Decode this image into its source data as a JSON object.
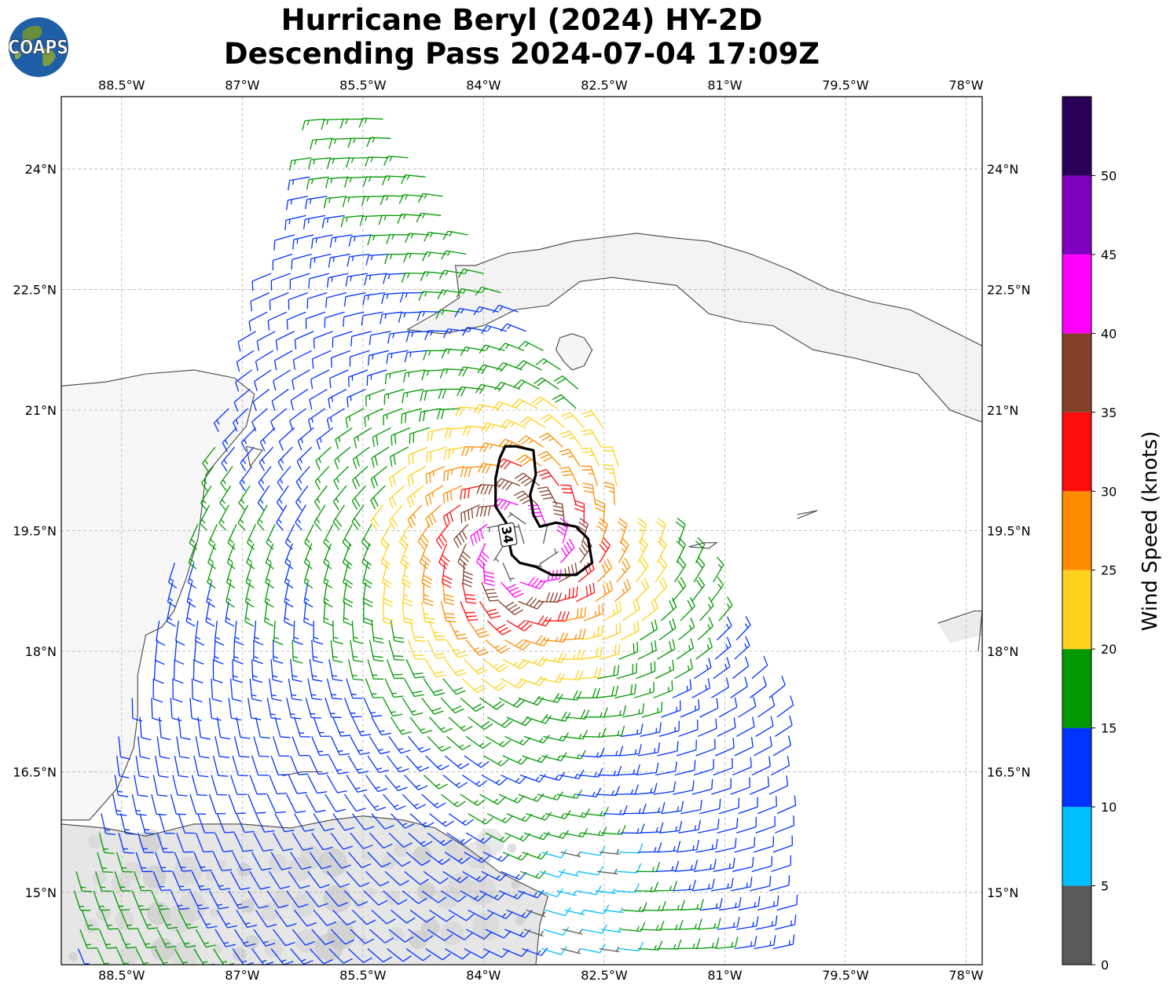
{
  "title": {
    "line1": "Hurricane Beryl (2024) HY-2D",
    "line2": "Descending Pass 2024-07-04 17:09Z"
  },
  "logo": {
    "text": "COAPS"
  },
  "map": {
    "lon_range": [
      -89.25,
      -77.8
    ],
    "lat_range": [
      14.1,
      24.9
    ],
    "lon_ticks": [
      {
        "value": -88.5,
        "label": "88.5°W"
      },
      {
        "value": -87.0,
        "label": "87°W"
      },
      {
        "value": -85.5,
        "label": "85.5°W"
      },
      {
        "value": -84.0,
        "label": "84°W"
      },
      {
        "value": -82.5,
        "label": "82.5°W"
      },
      {
        "value": -81.0,
        "label": "81°W"
      },
      {
        "value": -79.5,
        "label": "79.5°W"
      },
      {
        "value": -78.0,
        "label": "78°W"
      }
    ],
    "lat_ticks": [
      {
        "value": 24.0,
        "label": "24°N"
      },
      {
        "value": 22.5,
        "label": "22.5°N"
      },
      {
        "value": 21.0,
        "label": "21°N"
      },
      {
        "value": 19.5,
        "label": "19.5°N"
      },
      {
        "value": 18.0,
        "label": "18°N"
      },
      {
        "value": 16.5,
        "label": "16.5°N"
      },
      {
        "value": 15.0,
        "label": "15°N"
      }
    ],
    "grid": true,
    "storm_center": {
      "lon": -83.55,
      "lat": 19.3
    },
    "swath_note": "HY-2D descending pass wind barbs",
    "contour_label": "34",
    "contour_34kt": [
      [
        -83.73,
        20.55
      ],
      [
        -83.6,
        20.55
      ],
      [
        -83.38,
        20.5
      ],
      [
        -83.35,
        20.2
      ],
      [
        -83.42,
        19.95
      ],
      [
        -83.38,
        19.7
      ],
      [
        -83.3,
        19.55
      ],
      [
        -83.1,
        19.6
      ],
      [
        -82.85,
        19.55
      ],
      [
        -82.7,
        19.4
      ],
      [
        -82.65,
        19.1
      ],
      [
        -82.85,
        18.95
      ],
      [
        -83.15,
        18.95
      ],
      [
        -83.35,
        19.05
      ],
      [
        -83.55,
        19.1
      ],
      [
        -83.65,
        19.2
      ],
      [
        -83.7,
        19.45
      ],
      [
        -83.72,
        19.6
      ],
      [
        -83.85,
        19.8
      ],
      [
        -83.85,
        20.15
      ],
      [
        -83.8,
        20.4
      ]
    ],
    "coastlines": {
      "cuba": [
        [
          -84.95,
          22.0
        ],
        [
          -84.6,
          22.2
        ],
        [
          -84.3,
          22.4
        ],
        [
          -84.35,
          22.8
        ],
        [
          -84.1,
          22.8
        ],
        [
          -83.7,
          22.95
        ],
        [
          -83.3,
          23.0
        ],
        [
          -82.9,
          23.1
        ],
        [
          -82.5,
          23.15
        ],
        [
          -82.1,
          23.2
        ],
        [
          -81.7,
          23.15
        ],
        [
          -81.2,
          23.1
        ],
        [
          -80.7,
          22.95
        ],
        [
          -80.2,
          22.75
        ],
        [
          -79.7,
          22.5
        ],
        [
          -79.2,
          22.35
        ],
        [
          -78.7,
          22.25
        ],
        [
          -78.2,
          22.0
        ],
        [
          -77.8,
          21.8
        ]
      ],
      "cuba_south": [
        [
          -84.95,
          22.0
        ],
        [
          -84.5,
          21.95
        ],
        [
          -84.0,
          22.05
        ],
        [
          -83.6,
          22.25
        ],
        [
          -83.2,
          22.3
        ],
        [
          -82.8,
          22.6
        ],
        [
          -82.4,
          22.65
        ],
        [
          -82.0,
          22.6
        ],
        [
          -81.6,
          22.55
        ],
        [
          -81.2,
          22.2
        ],
        [
          -80.8,
          22.1
        ],
        [
          -80.4,
          22.05
        ],
        [
          -79.9,
          21.75
        ],
        [
          -79.4,
          21.65
        ],
        [
          -79.0,
          21.55
        ],
        [
          -78.6,
          21.45
        ],
        [
          -78.2,
          21.0
        ],
        [
          -77.8,
          20.85
        ]
      ],
      "isle_of_youth": [
        [
          -83.05,
          21.9
        ],
        [
          -82.9,
          21.95
        ],
        [
          -82.75,
          21.9
        ],
        [
          -82.65,
          21.75
        ],
        [
          -82.75,
          21.55
        ],
        [
          -82.9,
          21.5
        ],
        [
          -83.0,
          21.6
        ],
        [
          -83.1,
          21.75
        ],
        [
          -83.05,
          21.9
        ]
      ],
      "yucatan": [
        [
          -89.25,
          21.3
        ],
        [
          -88.7,
          21.35
        ],
        [
          -88.2,
          21.45
        ],
        [
          -87.6,
          21.5
        ],
        [
          -87.1,
          21.4
        ],
        [
          -86.85,
          21.2
        ],
        [
          -86.95,
          20.8
        ],
        [
          -87.2,
          20.5
        ],
        [
          -87.45,
          20.2
        ],
        [
          -87.5,
          19.8
        ],
        [
          -87.55,
          19.4
        ],
        [
          -87.7,
          18.9
        ],
        [
          -87.85,
          18.5
        ],
        [
          -88.0,
          18.3
        ],
        [
          -88.2,
          18.2
        ],
        [
          -88.3,
          17.7
        ],
        [
          -88.3,
          17.2
        ],
        [
          -88.35,
          16.8
        ],
        [
          -88.55,
          16.3
        ],
        [
          -88.9,
          15.9
        ],
        [
          -89.25,
          15.9
        ]
      ],
      "honduras": [
        [
          -89.25,
          15.85
        ],
        [
          -88.7,
          15.8
        ],
        [
          -88.2,
          15.7
        ],
        [
          -87.6,
          15.85
        ],
        [
          -87.0,
          15.85
        ],
        [
          -86.4,
          15.8
        ],
        [
          -85.9,
          15.9
        ],
        [
          -85.5,
          15.95
        ],
        [
          -85.0,
          15.9
        ],
        [
          -84.6,
          15.8
        ],
        [
          -84.2,
          15.55
        ],
        [
          -83.8,
          15.25
        ],
        [
          -83.4,
          15.05
        ],
        [
          -83.2,
          14.95
        ],
        [
          -83.3,
          14.6
        ],
        [
          -83.35,
          14.1
        ]
      ],
      "jamaica": [
        [
          -78.35,
          18.35
        ],
        [
          -77.9,
          18.5
        ],
        [
          -77.8,
          18.5
        ]
      ],
      "haiti": [
        [
          -77.8,
          18.5
        ],
        [
          -77.85,
          18.0
        ]
      ],
      "cayman_grand": [
        [
          -81.45,
          19.3
        ],
        [
          -81.25,
          19.35
        ],
        [
          -81.1,
          19.35
        ],
        [
          -81.2,
          19.28
        ],
        [
          -81.45,
          19.3
        ]
      ],
      "cayman_little": [
        [
          -80.1,
          19.7
        ],
        [
          -79.85,
          19.75
        ],
        [
          -80.1,
          19.65
        ]
      ],
      "cozumel": [
        [
          -86.95,
          20.55
        ],
        [
          -86.75,
          20.5
        ],
        [
          -86.9,
          20.3
        ],
        [
          -86.95,
          20.55
        ]
      ],
      "bay_islands": [
        [
          -86.5,
          16.45
        ],
        [
          -86.25,
          16.5
        ],
        [
          -86.0,
          16.5
        ]
      ],
      "swan": [
        [
          -83.9,
          17.4
        ]
      ]
    }
  },
  "colorbar": {
    "title": "Wind Speed (knots)",
    "bins": [
      {
        "from": 0,
        "to": 5,
        "color": "#595959"
      },
      {
        "from": 5,
        "to": 10,
        "color": "#00bfff"
      },
      {
        "from": 10,
        "to": 15,
        "color": "#0033ff"
      },
      {
        "from": 15,
        "to": 20,
        "color": "#009900"
      },
      {
        "from": 20,
        "to": 25,
        "color": "#ffd11a"
      },
      {
        "from": 25,
        "to": 30,
        "color": "#ff8c00"
      },
      {
        "from": 30,
        "to": 35,
        "color": "#ff0d0d"
      },
      {
        "from": 35,
        "to": 40,
        "color": "#85402a"
      },
      {
        "from": 40,
        "to": 45,
        "color": "#ff00ff"
      },
      {
        "from": 45,
        "to": 50,
        "color": "#8000bf"
      },
      {
        "from": 50,
        "to": 55,
        "color": "#290057"
      }
    ],
    "tick_labels": [
      "0",
      "5",
      "10",
      "15",
      "20",
      "25",
      "30",
      "35",
      "40",
      "45",
      "50"
    ]
  }
}
